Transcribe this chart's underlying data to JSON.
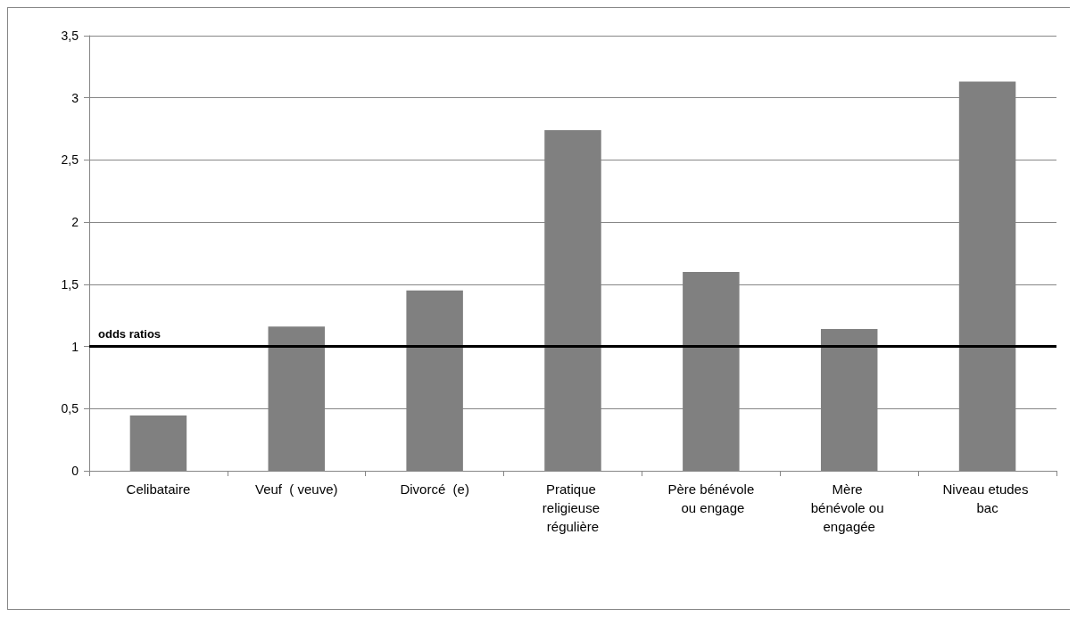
{
  "chart_data": {
    "type": "bar",
    "categories": [
      "Celibataire",
      "Veuf  ( veuve)",
      "Divorcé  (e)",
      "Pratique religieuse régulière",
      "Père bénévole ou engage",
      "Mère bénévole ou engagée",
      "Niveau etudes bac"
    ],
    "values": [
      0.445,
      1.16,
      1.45,
      2.74,
      1.6,
      1.14,
      3.13
    ],
    "color": "#808080",
    "ylim": [
      0,
      3.5
    ],
    "yticks": [
      {
        "value": 0,
        "label": "0"
      },
      {
        "value": 0.5,
        "label": "0,5"
      },
      {
        "value": 1,
        "label": "1"
      },
      {
        "value": 1.5,
        "label": "1,5"
      },
      {
        "value": 2,
        "label": "2"
      },
      {
        "value": 2.5,
        "label": "2,5"
      },
      {
        "value": 3,
        "label": "3"
      },
      {
        "value": 3.5,
        "label": "3,5"
      }
    ],
    "grid": "y",
    "ref_lines": [
      {
        "axis": "y",
        "value": 1,
        "label": "odds ratios",
        "color": "#000000",
        "line_style": "solid"
      }
    ]
  }
}
